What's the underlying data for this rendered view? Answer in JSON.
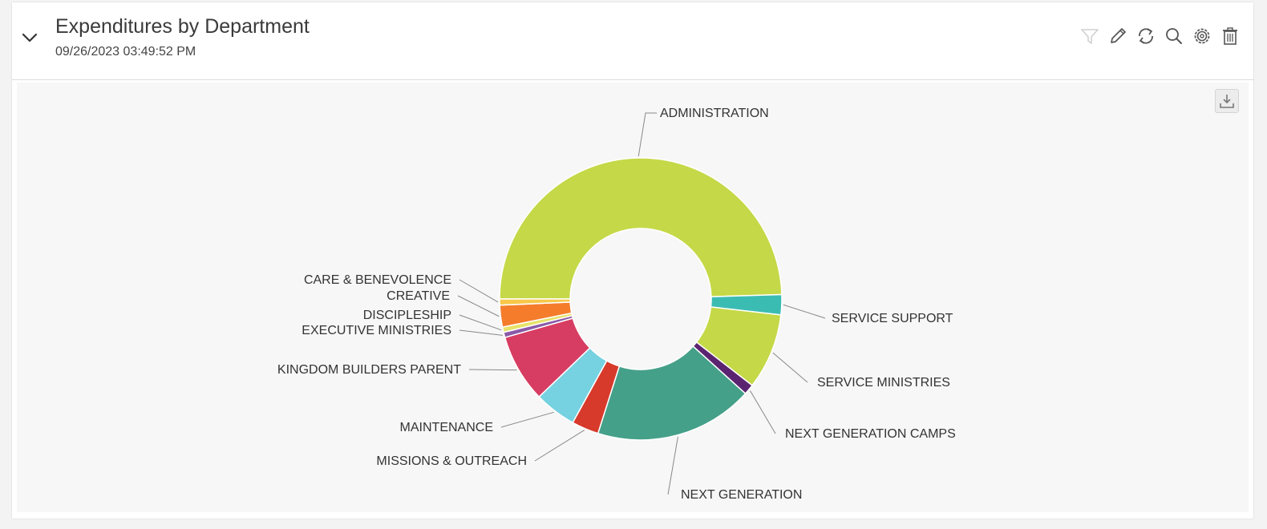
{
  "widget": {
    "title": "Expenditures by Department",
    "timestamp": "09/26/2023 03:49:52 PM"
  },
  "toolbar": {
    "items": [
      {
        "name": "filter-icon",
        "enabled": false
      },
      {
        "name": "edit-icon",
        "enabled": true
      },
      {
        "name": "refresh-icon",
        "enabled": true
      },
      {
        "name": "search-icon",
        "enabled": true
      },
      {
        "name": "settings-icon",
        "enabled": true
      },
      {
        "name": "delete-icon",
        "enabled": true
      }
    ],
    "export_icon": "download-icon"
  },
  "chart_data": {
    "type": "pie",
    "subtype": "donut",
    "title": "",
    "series": [
      {
        "label": "ADMINISTRATION",
        "value": 49.5,
        "color": "#c5d847"
      },
      {
        "label": "SERVICE SUPPORT",
        "value": 2.3,
        "color": "#3bbcb3"
      },
      {
        "label": "SERVICE MINISTRIES",
        "value": 8.7,
        "color": "#c5d847"
      },
      {
        "label": "NEXT GENERATION CAMPS",
        "value": 1.2,
        "color": "#5b2470"
      },
      {
        "label": "NEXT GENERATION",
        "value": 18.2,
        "color": "#45a089"
      },
      {
        "label": "MISSIONS & OUTREACH",
        "value": 3.1,
        "color": "#d73a2b"
      },
      {
        "label": "MAINTENANCE",
        "value": 4.8,
        "color": "#76d1e0"
      },
      {
        "label": "KINGDOM BUILDERS PARENT",
        "value": 7.8,
        "color": "#d73d62"
      },
      {
        "label": "EXECUTIVE MINISTRIES",
        "value": 0.6,
        "color": "#8a5aa8"
      },
      {
        "label": "DISCIPLESHIP",
        "value": 0.6,
        "color": "#e7e26a"
      },
      {
        "label": "CREATIVE",
        "value": 2.5,
        "color": "#f47c2b"
      },
      {
        "label": "CARE & BENEVOLENCE",
        "value": 0.7,
        "color": "#f7c84a"
      }
    ]
  }
}
